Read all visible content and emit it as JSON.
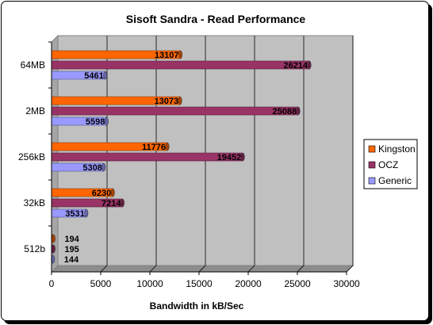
{
  "chart_data": {
    "type": "bar",
    "orientation": "horizontal",
    "title": "Sisoft Sandra - Read Performance",
    "xlabel": "Bandwidth in kB/Sec",
    "ylabel": "",
    "categories": [
      "64MB",
      "2MB",
      "256kB",
      "32kB",
      "512b"
    ],
    "xlim": [
      0,
      30000
    ],
    "xticks": [
      0,
      5000,
      10000,
      15000,
      20000,
      25000,
      30000
    ],
    "series": [
      {
        "name": "Kingston",
        "color": "#ff6600",
        "values": [
          13107,
          13073,
          11776,
          6230,
          194
        ]
      },
      {
        "name": "OCZ",
        "color": "#993366",
        "values": [
          26214,
          25088,
          19452,
          7214,
          195
        ]
      },
      {
        "name": "Generic",
        "color": "#9999ff",
        "values": [
          5461,
          5598,
          5308,
          3531,
          144
        ]
      }
    ],
    "grid": true,
    "legend_position": "right",
    "plot_background": "#c0c0c0"
  }
}
